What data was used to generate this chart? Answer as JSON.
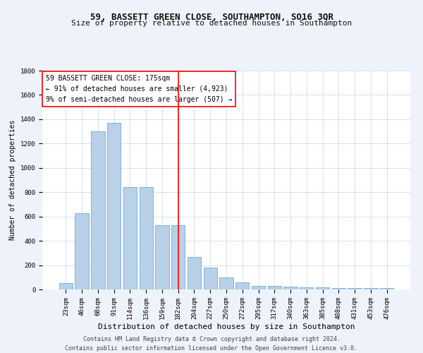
{
  "title": "59, BASSETT GREEN CLOSE, SOUTHAMPTON, SO16 3QR",
  "subtitle": "Size of property relative to detached houses in Southampton",
  "xlabel": "Distribution of detached houses by size in Southampton",
  "ylabel": "Number of detached properties",
  "categories": [
    "23sqm",
    "46sqm",
    "68sqm",
    "91sqm",
    "114sqm",
    "136sqm",
    "159sqm",
    "182sqm",
    "204sqm",
    "227sqm",
    "250sqm",
    "272sqm",
    "295sqm",
    "317sqm",
    "340sqm",
    "363sqm",
    "385sqm",
    "408sqm",
    "431sqm",
    "453sqm",
    "476sqm"
  ],
  "values": [
    50,
    630,
    1300,
    1370,
    840,
    840,
    530,
    530,
    270,
    180,
    100,
    60,
    30,
    30,
    25,
    20,
    15,
    10,
    10,
    10,
    10
  ],
  "bar_color": "#b8d0e8",
  "bar_edgecolor": "#6baed6",
  "redline_index": 7,
  "ylim": [
    0,
    1800
  ],
  "yticks": [
    0,
    200,
    400,
    600,
    800,
    1000,
    1200,
    1400,
    1600,
    1800
  ],
  "annotation_title": "59 BASSETT GREEN CLOSE: 175sqm",
  "annotation_line1": "← 91% of detached houses are smaller (4,923)",
  "annotation_line2": "9% of semi-detached houses are larger (507) →",
  "footer1": "Contains HM Land Registry data © Crown copyright and database right 2024.",
  "footer2": "Contains public sector information licensed under the Open Government Licence v3.0.",
  "background_color": "#eef2fa",
  "plot_background": "#ffffff",
  "title_fontsize": 9,
  "subtitle_fontsize": 8,
  "xlabel_fontsize": 8,
  "ylabel_fontsize": 7,
  "tick_fontsize": 6.5,
  "annot_fontsize": 7,
  "footer_fontsize": 6
}
